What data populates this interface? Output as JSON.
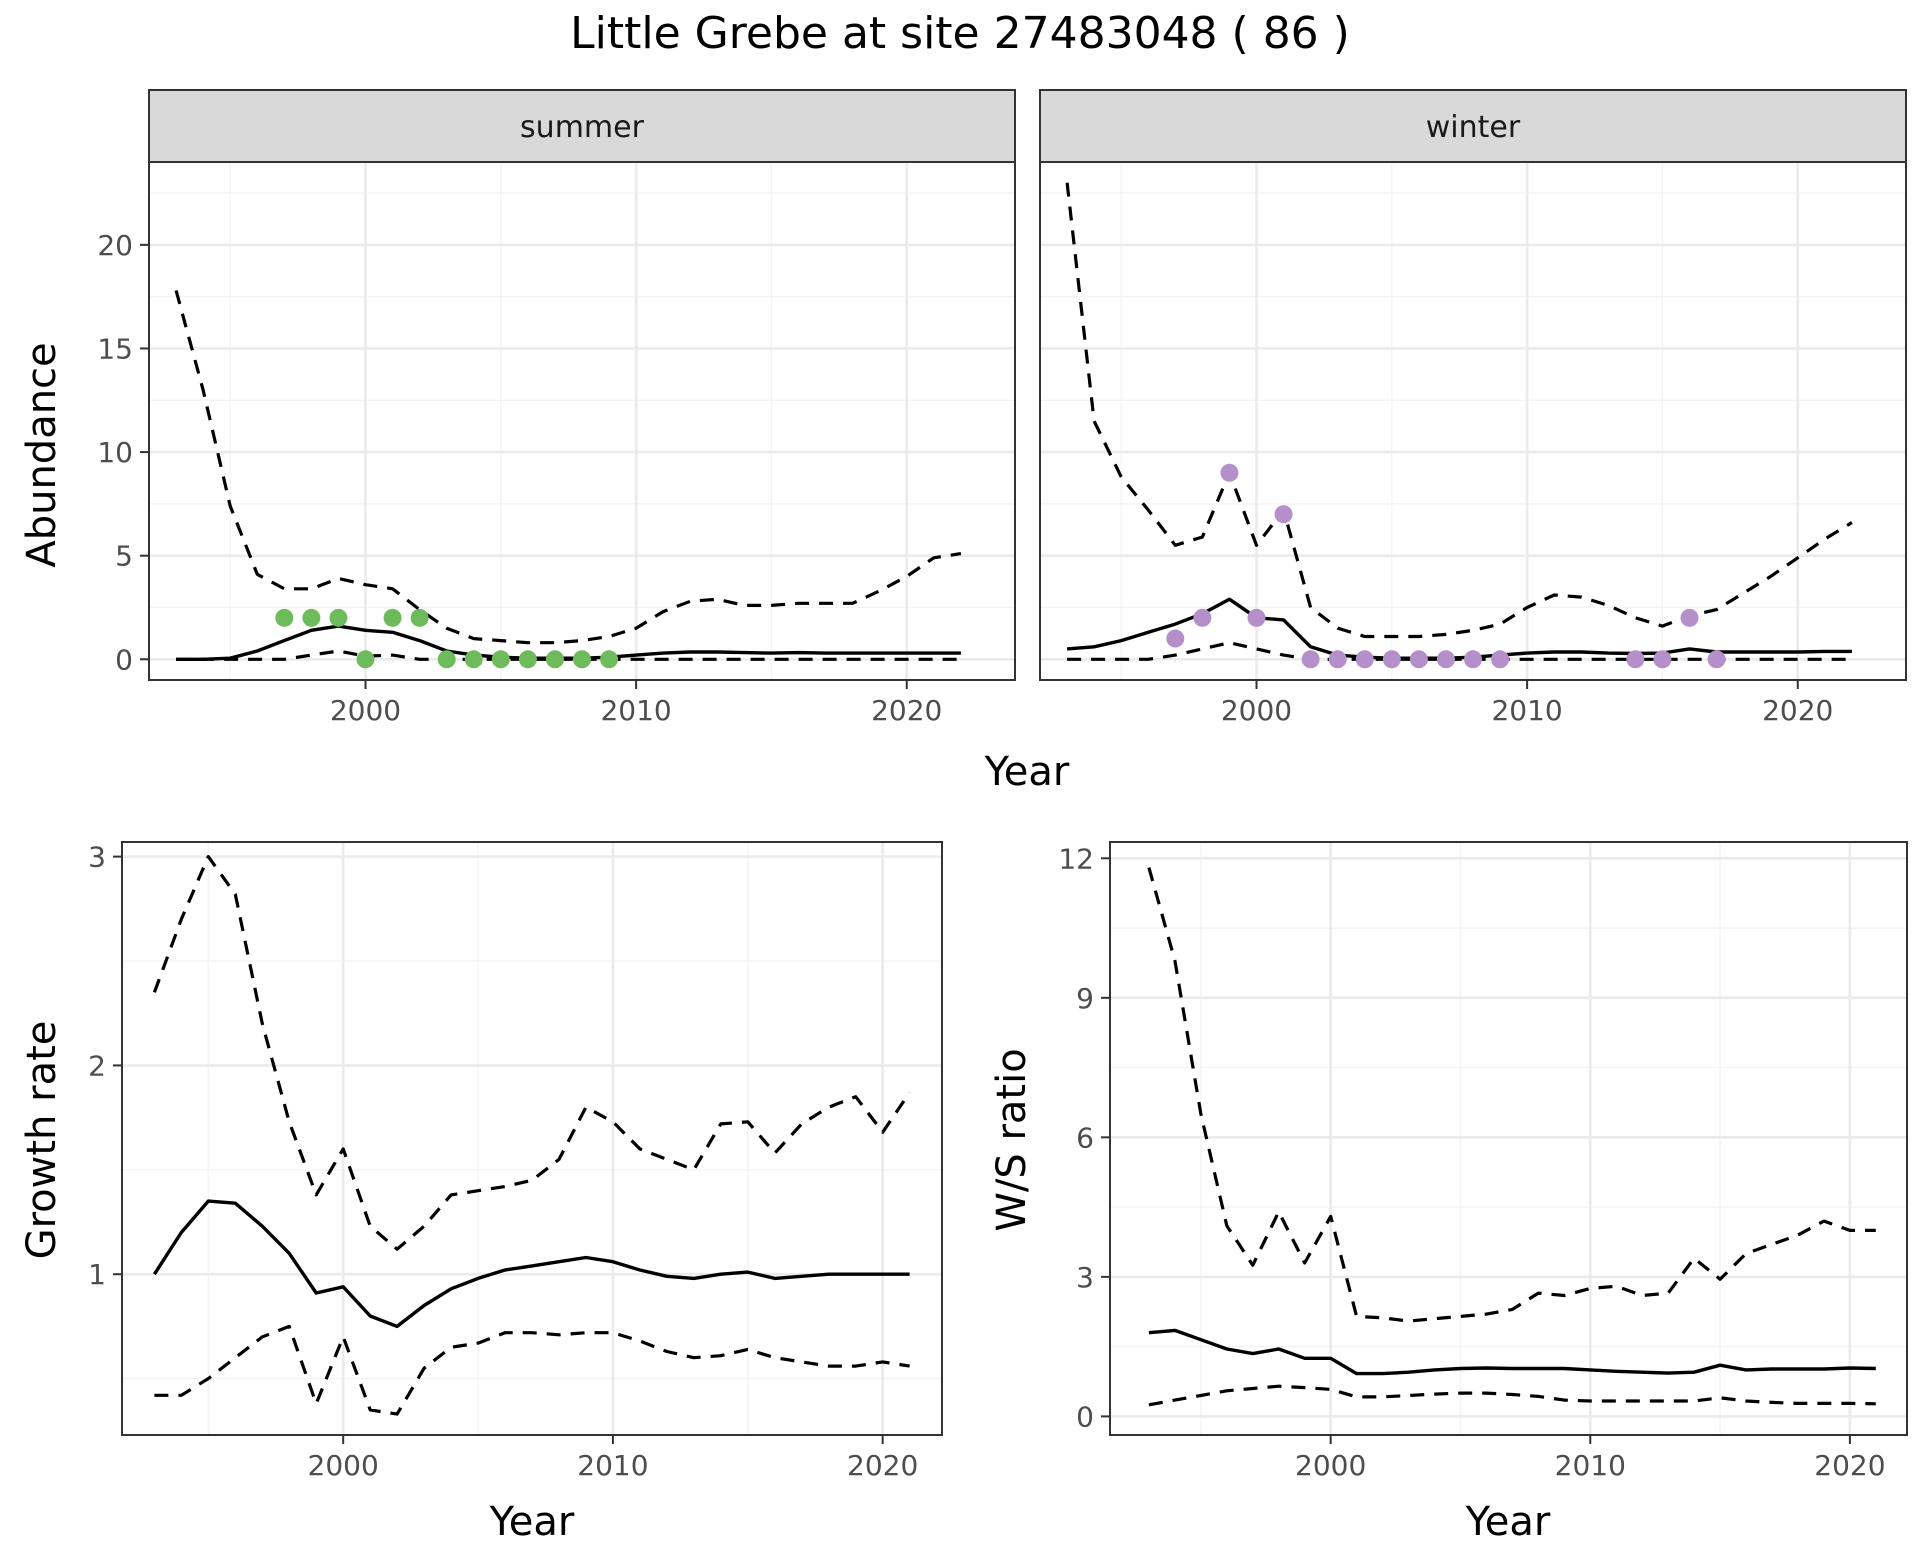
{
  "title": "Little Grebe at site 27483048 ( 86 )",
  "colors": {
    "summer_points": "#6dbb5b",
    "winter_points": "#b48fc9",
    "lines": "#000000"
  },
  "chart_data": [
    {
      "type": "line",
      "id": "abundance",
      "facets": [
        "summer",
        "winter"
      ],
      "xlabel": "Year",
      "ylabel": "Abundance",
      "xlim": [
        1992,
        2024
      ],
      "ylim": [
        -1,
        24
      ],
      "xticks": [
        2000,
        2010,
        2020
      ],
      "yticks": [
        0,
        5,
        10,
        15,
        20
      ],
      "grid": true,
      "panels": {
        "summer": {
          "estimate": {
            "x": [
              1993,
              1994,
              1995,
              1996,
              1997,
              1998,
              1999,
              2000,
              2001,
              2002,
              2003,
              2004,
              2005,
              2006,
              2007,
              2008,
              2009,
              2010,
              2011,
              2012,
              2013,
              2014,
              2015,
              2016,
              2017,
              2018,
              2019,
              2020,
              2021,
              2022
            ],
            "y": [
              0,
              0,
              0.05,
              0.4,
              0.9,
              1.4,
              1.6,
              1.4,
              1.3,
              0.9,
              0.4,
              0.2,
              0.1,
              0.05,
              0.05,
              0.05,
              0.1,
              0.2,
              0.3,
              0.35,
              0.35,
              0.32,
              0.3,
              0.32,
              0.3,
              0.3,
              0.3,
              0.3,
              0.3,
              0.3
            ]
          },
          "upper": {
            "x": [
              1993,
              1994,
              1995,
              1996,
              1997,
              1998,
              1999,
              2000,
              2001,
              2002,
              2003,
              2004,
              2005,
              2006,
              2007,
              2008,
              2009,
              2010,
              2011,
              2012,
              2013,
              2014,
              2015,
              2016,
              2017,
              2018,
              2019,
              2020,
              2021,
              2022
            ],
            "y": [
              17.8,
              13,
              7.4,
              4.1,
              3.4,
              3.4,
              3.9,
              3.6,
              3.4,
              2.4,
              1.5,
              1.0,
              0.9,
              0.8,
              0.8,
              0.9,
              1.1,
              1.5,
              2.3,
              2.8,
              2.9,
              2.6,
              2.6,
              2.7,
              2.7,
              2.7,
              3.3,
              4.0,
              4.9,
              5.1
            ]
          },
          "lower": {
            "x": [
              1993,
              1994,
              1995,
              1996,
              1997,
              1998,
              1999,
              2000,
              2001,
              2002,
              2003,
              2004,
              2005,
              2006,
              2007,
              2008,
              2009,
              2010,
              2011,
              2012,
              2013,
              2014,
              2015,
              2016,
              2017,
              2018,
              2019,
              2020,
              2021,
              2022
            ],
            "y": [
              0,
              0,
              0,
              0,
              0,
              0.2,
              0.4,
              0.15,
              0.2,
              0,
              0,
              0,
              0,
              0,
              0,
              0,
              0,
              0,
              0,
              0,
              0,
              0,
              0,
              0,
              0,
              0,
              0,
              0,
              0,
              0
            ]
          },
          "points": {
            "x": [
              1997,
              1998,
              1999,
              2000,
              2001,
              2002,
              2003,
              2004,
              2005,
              2006,
              2007,
              2008,
              2009
            ],
            "y": [
              2,
              2,
              2,
              0,
              2,
              2,
              0,
              0,
              0,
              0,
              0,
              0,
              0
            ]
          }
        },
        "winter": {
          "estimate": {
            "x": [
              1993,
              1994,
              1995,
              1996,
              1997,
              1998,
              1999,
              2000,
              2001,
              2002,
              2003,
              2004,
              2005,
              2006,
              2007,
              2008,
              2009,
              2010,
              2011,
              2012,
              2013,
              2014,
              2015,
              2016,
              2017,
              2018,
              2019,
              2020,
              2021,
              2022
            ],
            "y": [
              0.5,
              0.6,
              0.9,
              1.3,
              1.7,
              2.2,
              2.9,
              2.0,
              1.9,
              0.6,
              0.2,
              0.1,
              0.05,
              0.05,
              0.05,
              0.1,
              0.2,
              0.3,
              0.35,
              0.35,
              0.3,
              0.28,
              0.3,
              0.5,
              0.35,
              0.35,
              0.35,
              0.35,
              0.38,
              0.38
            ]
          },
          "upper": {
            "x": [
              1993,
              1994,
              1995,
              1996,
              1997,
              1998,
              1999,
              2000,
              2001,
              2002,
              2003,
              2004,
              2005,
              2006,
              2007,
              2008,
              2009,
              2010,
              2011,
              2012,
              2013,
              2014,
              2015,
              2016,
              2017,
              2018,
              2019,
              2020,
              2021,
              2022
            ],
            "y": [
              23,
              11.5,
              8.8,
              7.2,
              5.5,
              5.9,
              9.0,
              5.5,
              7.2,
              2.5,
              1.5,
              1.1,
              1.1,
              1.1,
              1.2,
              1.4,
              1.7,
              2.5,
              3.1,
              3.0,
              2.6,
              2.0,
              1.6,
              2.1,
              2.4,
              3.2,
              4.0,
              4.9,
              5.8,
              6.6
            ]
          },
          "lower": {
            "x": [
              1993,
              1994,
              1995,
              1996,
              1997,
              1998,
              1999,
              2000,
              2001,
              2002,
              2003,
              2004,
              2005,
              2006,
              2007,
              2008,
              2009,
              2010,
              2011,
              2012,
              2013,
              2014,
              2015,
              2016,
              2017,
              2018,
              2019,
              2020,
              2021,
              2022
            ],
            "y": [
              0,
              0,
              0,
              0,
              0.2,
              0.5,
              0.8,
              0.5,
              0.2,
              0,
              0,
              0,
              0,
              0,
              0,
              0,
              0,
              0,
              0,
              0,
              0,
              0,
              0,
              0,
              0,
              0,
              0,
              0,
              0,
              0
            ]
          },
          "points": {
            "x": [
              1997,
              1998,
              1999,
              2000,
              2001,
              2002,
              2003,
              2004,
              2005,
              2006,
              2007,
              2008,
              2009,
              2014,
              2015,
              2016,
              2017
            ],
            "y": [
              1,
              2,
              9,
              2,
              7,
              0,
              0,
              0,
              0,
              0,
              0,
              0,
              0,
              0,
              0,
              2,
              0
            ]
          }
        }
      }
    },
    {
      "type": "line",
      "id": "growth",
      "xlabel": "Year",
      "ylabel": "Growth rate",
      "xlim": [
        1991.8,
        2022.2
      ],
      "ylim": [
        0.23,
        3.07
      ],
      "xticks": [
        2000,
        2010,
        2020
      ],
      "yticks": [
        1,
        2,
        3
      ],
      "grid": true,
      "estimate": {
        "x": [
          1993,
          1994,
          1995,
          1996,
          1997,
          1998,
          1999,
          2000,
          2001,
          2002,
          2003,
          2004,
          2005,
          2006,
          2007,
          2008,
          2009,
          2010,
          2011,
          2012,
          2013,
          2014,
          2015,
          2016,
          2017,
          2018,
          2019,
          2020,
          2021
        ],
        "y": [
          1.0,
          1.2,
          1.35,
          1.34,
          1.23,
          1.1,
          0.91,
          0.94,
          0.8,
          0.75,
          0.85,
          0.93,
          0.98,
          1.02,
          1.04,
          1.06,
          1.08,
          1.06,
          1.02,
          0.99,
          0.98,
          1.0,
          1.01,
          0.98,
          0.99,
          1.0,
          1.0,
          1.0,
          1.0
        ]
      },
      "upper": {
        "x": [
          1993,
          1994,
          1995,
          1996,
          1997,
          1998,
          1999,
          2000,
          2001,
          2002,
          2003,
          2004,
          2005,
          2006,
          2007,
          2008,
          2009,
          2010,
          2011,
          2012,
          2013,
          2014,
          2015,
          2016,
          2017,
          2018,
          2019,
          2020,
          2021
        ],
        "y": [
          2.35,
          2.7,
          3.0,
          2.82,
          2.2,
          1.73,
          1.38,
          1.6,
          1.23,
          1.12,
          1.23,
          1.38,
          1.4,
          1.42,
          1.45,
          1.55,
          1.8,
          1.73,
          1.6,
          1.55,
          1.5,
          1.72,
          1.73,
          1.58,
          1.72,
          1.8,
          1.85,
          1.68,
          1.87
        ]
      },
      "lower": {
        "x": [
          1993,
          1994,
          1995,
          1996,
          1997,
          1998,
          1999,
          2000,
          2001,
          2002,
          2003,
          2004,
          2005,
          2006,
          2007,
          2008,
          2009,
          2010,
          2011,
          2012,
          2013,
          2014,
          2015,
          2016,
          2017,
          2018,
          2019,
          2020,
          2021
        ],
        "y": [
          0.42,
          0.42,
          0.5,
          0.6,
          0.7,
          0.75,
          0.38,
          0.7,
          0.35,
          0.33,
          0.55,
          0.65,
          0.67,
          0.72,
          0.72,
          0.71,
          0.72,
          0.72,
          0.68,
          0.63,
          0.6,
          0.61,
          0.64,
          0.6,
          0.58,
          0.56,
          0.56,
          0.58,
          0.56
        ]
      }
    },
    {
      "type": "line",
      "id": "wsratio",
      "xlabel": "Year",
      "ylabel": "W/S ratio",
      "xlim": [
        1991.5,
        2022.2
      ],
      "ylim": [
        -0.4,
        12.35
      ],
      "xticks": [
        2000,
        2010,
        2020
      ],
      "yticks": [
        0,
        3,
        6,
        9,
        12
      ],
      "grid": true,
      "estimate": {
        "x": [
          1993,
          1994,
          1995,
          1996,
          1997,
          1998,
          1999,
          2000,
          2001,
          2002,
          2003,
          2004,
          2005,
          2006,
          2007,
          2008,
          2009,
          2010,
          2011,
          2012,
          2013,
          2014,
          2015,
          2016,
          2017,
          2018,
          2019,
          2020,
          2021
        ],
        "y": [
          1.8,
          1.85,
          1.65,
          1.45,
          1.35,
          1.45,
          1.25,
          1.25,
          0.92,
          0.92,
          0.95,
          1.0,
          1.03,
          1.04,
          1.03,
          1.03,
          1.03,
          1.0,
          0.97,
          0.95,
          0.93,
          0.95,
          1.1,
          1.0,
          1.02,
          1.02,
          1.02,
          1.04,
          1.03
        ]
      },
      "upper": {
        "x": [
          1993,
          1994,
          1995,
          1996,
          1997,
          1998,
          1999,
          2000,
          2001,
          2002,
          2003,
          2004,
          2005,
          2006,
          2007,
          2008,
          2009,
          2010,
          2011,
          2012,
          2013,
          2014,
          2015,
          2016,
          2017,
          2018,
          2019,
          2020,
          2021
        ],
        "y": [
          11.8,
          9.8,
          6.5,
          4.1,
          3.25,
          4.4,
          3.3,
          4.3,
          2.15,
          2.12,
          2.05,
          2.1,
          2.15,
          2.2,
          2.3,
          2.65,
          2.6,
          2.75,
          2.8,
          2.6,
          2.65,
          3.4,
          2.95,
          3.5,
          3.7,
          3.9,
          4.2,
          4.0,
          4.0
        ]
      },
      "lower": {
        "x": [
          1993,
          1994,
          1995,
          1996,
          1997,
          1998,
          1999,
          2000,
          2001,
          2002,
          2003,
          2004,
          2005,
          2006,
          2007,
          2008,
          2009,
          2010,
          2011,
          2012,
          2013,
          2014,
          2015,
          2016,
          2017,
          2018,
          2019,
          2020,
          2021
        ],
        "y": [
          0.25,
          0.35,
          0.45,
          0.55,
          0.6,
          0.65,
          0.62,
          0.58,
          0.42,
          0.42,
          0.45,
          0.48,
          0.5,
          0.5,
          0.47,
          0.43,
          0.35,
          0.33,
          0.33,
          0.33,
          0.33,
          0.33,
          0.4,
          0.33,
          0.3,
          0.28,
          0.28,
          0.28,
          0.27
        ]
      }
    }
  ]
}
